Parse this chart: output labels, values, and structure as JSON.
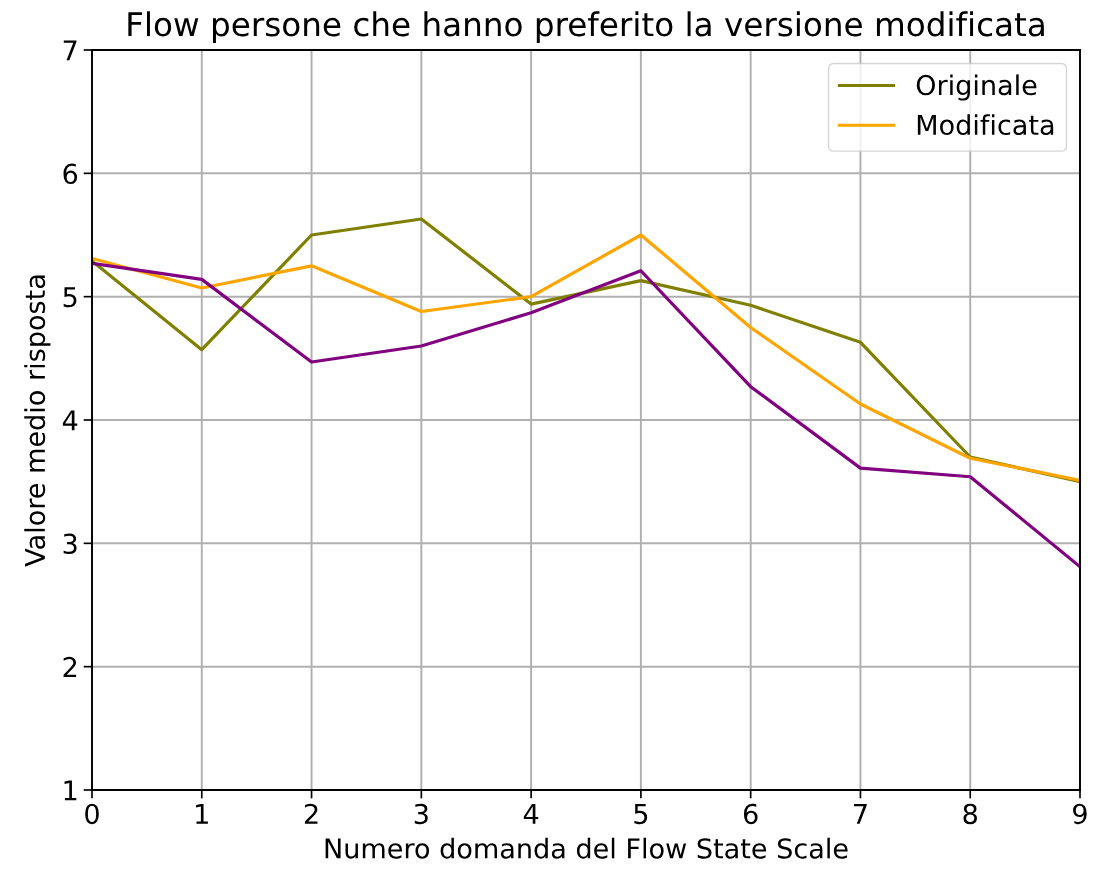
{
  "chart_data": {
    "type": "line",
    "title": "Flow persone che hanno preferito la versione modificata",
    "xlabel": "Numero domanda del Flow State Scale",
    "ylabel": "Valore medio risposta",
    "x": [
      0,
      1,
      2,
      3,
      4,
      5,
      6,
      7,
      8,
      9
    ],
    "xlim": [
      0,
      9
    ],
    "xticks": [
      0,
      1,
      2,
      3,
      4,
      5,
      6,
      7,
      8,
      9
    ],
    "ylim": [
      1,
      7
    ],
    "yticks": [
      1,
      2,
      3,
      4,
      5,
      6,
      7
    ],
    "grid": true,
    "legend": "top right",
    "series": [
      {
        "name": "Originale",
        "color": "#808000",
        "values": [
          5.29,
          4.57,
          5.5,
          5.63,
          4.94,
          5.13,
          4.93,
          4.63,
          3.7,
          3.5
        ]
      },
      {
        "name": "Modificata",
        "color": "#ffa500",
        "values": [
          5.31,
          5.07,
          5.25,
          4.88,
          5.0,
          5.5,
          4.75,
          4.13,
          3.69,
          3.51
        ]
      },
      {
        "color": "#800080",
        "values": [
          5.27,
          5.14,
          4.47,
          4.6,
          4.87,
          5.21,
          4.27,
          3.61,
          3.54,
          2.81
        ]
      }
    ]
  }
}
